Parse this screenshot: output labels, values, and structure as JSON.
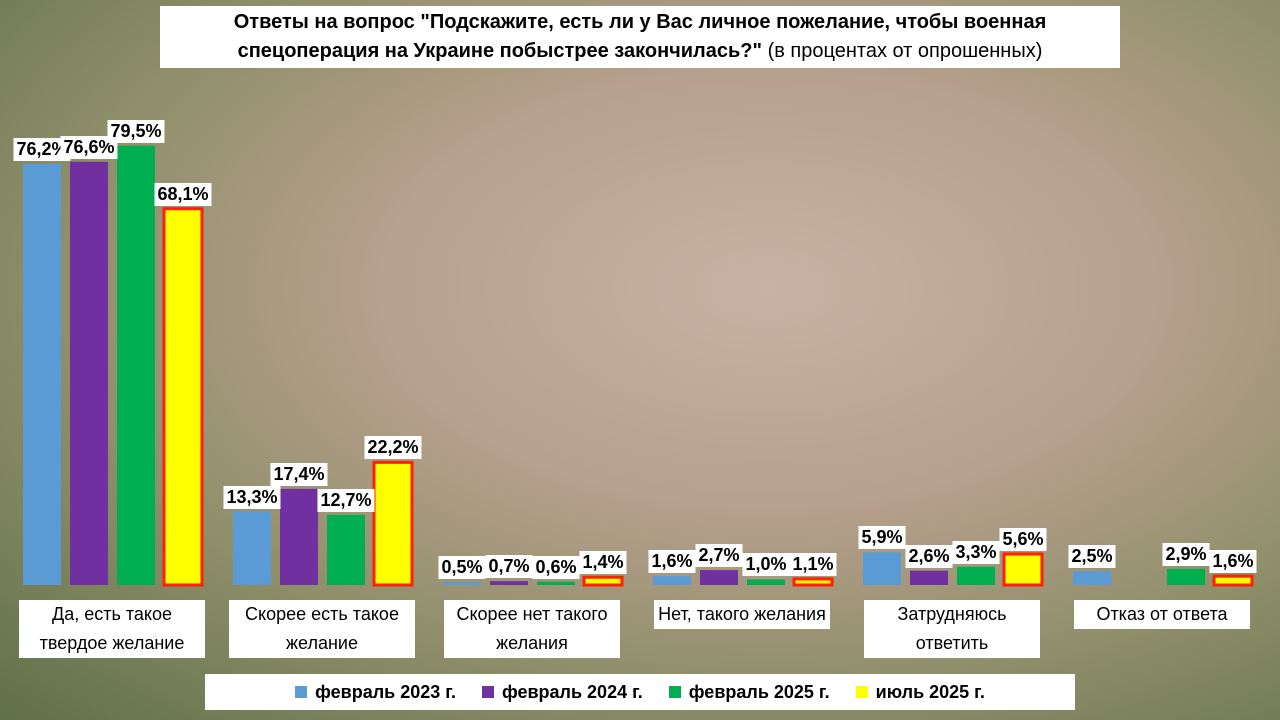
{
  "chart_data": {
    "type": "bar",
    "title": "Ответы на вопрос \"Подскажите, есть ли у Вас личное пожелание, чтобы военная спецоперация на Украине побыстрее закончилась?\"",
    "subtitle": "(в процентах от опрошенных)",
    "categories": [
      "Да, есть такое твердое желание",
      "Скорее есть такое желание",
      "Скорее нет такого желания",
      "Нет, такого желания",
      "Затрудняюсь ответить",
      "Отказ от ответа"
    ],
    "ylim": [
      0,
      80
    ],
    "legend": "bottom",
    "series": [
      {
        "name": "февраль 2023 г.",
        "color": "#5b9bd5",
        "values": [
          76.2,
          13.3,
          0.5,
          1.6,
          5.9,
          2.5
        ],
        "value_labels": [
          "76,2%",
          "13,3%",
          "0,5%",
          "1,6%",
          "5,9%",
          "2,5%"
        ]
      },
      {
        "name": "февраль 2024 г.",
        "color": "#7030a0",
        "values": [
          76.6,
          17.4,
          0.7,
          2.7,
          2.6,
          null
        ],
        "value_labels": [
          "76,6%",
          "17,4%",
          "0,7%",
          "2,7%",
          "2,6%",
          null
        ]
      },
      {
        "name": "февраль 2025 г.",
        "color": "#00b050",
        "values": [
          79.5,
          12.7,
          0.6,
          1.0,
          3.3,
          2.9
        ],
        "value_labels": [
          "79,5%",
          "12,7%",
          "0,6%",
          "1,0%",
          "3,3%",
          "2,9%"
        ]
      },
      {
        "name": "июль 2025 г.",
        "color": "#ffff00",
        "outline": "#ff2000",
        "values": [
          68.1,
          22.2,
          1.4,
          1.1,
          5.6,
          1.6
        ],
        "value_labels": [
          "68,1%",
          "22,2%",
          "1,4%",
          "1,1%",
          "5,6%",
          "1,6%"
        ]
      }
    ]
  }
}
